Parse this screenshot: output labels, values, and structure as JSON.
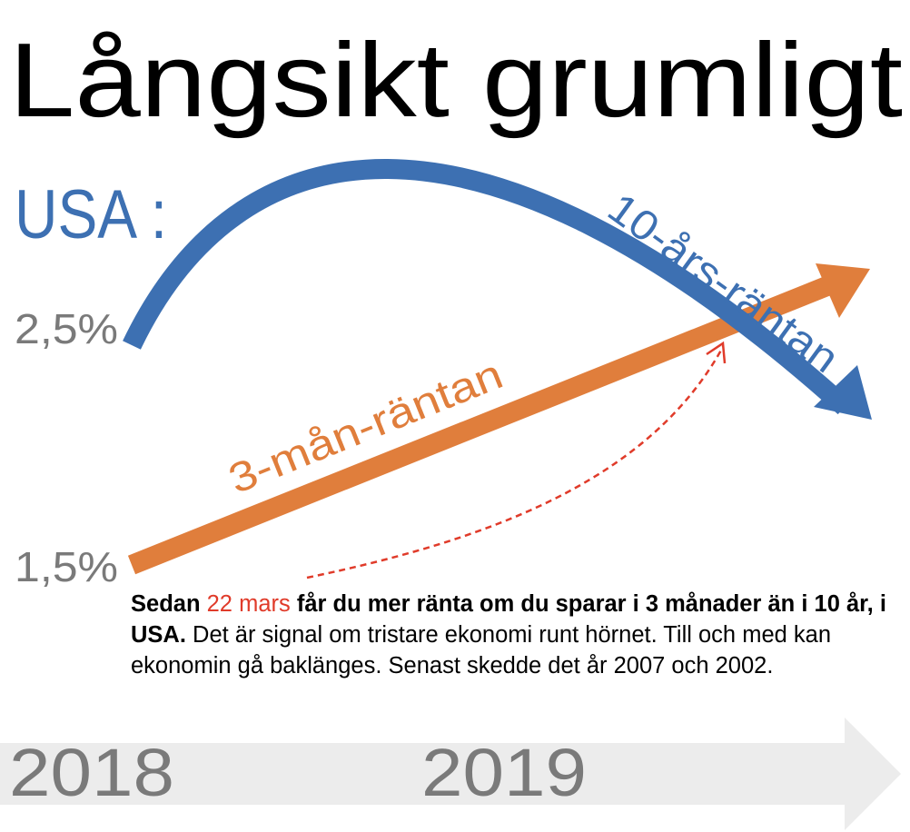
{
  "colors": {
    "ten_year": "#3d70b2",
    "three_month": "#e07e3c",
    "annotation": "#e03b2a",
    "axis_text": "#7a7a7a",
    "time_arrow": "#ececec"
  },
  "chart_data": {
    "type": "line",
    "title": "Långsikt grumligt",
    "subtitle": "USA :",
    "yticks": [
      "2,5%",
      "1,5%"
    ],
    "xticks": [
      "2018",
      "2019"
    ],
    "series": [
      {
        "name": "10-års-räntan",
        "trend": "up-then-down",
        "start_level": "2,5%"
      },
      {
        "name": "3-mån-räntan",
        "trend": "rising",
        "start_level": "1,5%"
      }
    ],
    "annotation": "22 mars"
  },
  "note": {
    "bold_before": "Sedan ",
    "date": "22 mars",
    "bold_after": " får du mer ränta om du sparar i 3 månader än i 10 år, i USA.",
    "rest": " Det är signal om tristare ekonomi runt hörnet. Till och med kan ekonomin gå baklänges. Senast skedde det år 2007 och 2002."
  }
}
